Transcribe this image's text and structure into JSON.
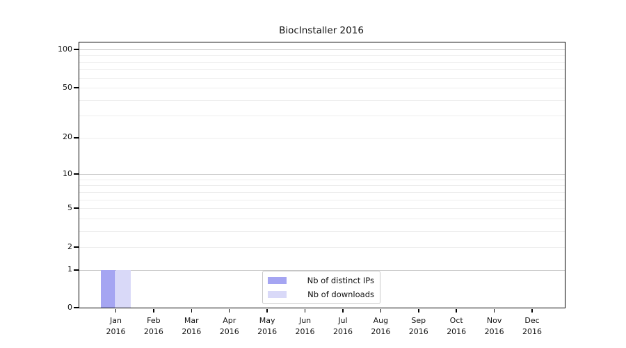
{
  "chart_data": {
    "type": "bar",
    "title": "BiocInstaller 2016",
    "categories": [
      "Jan",
      "Feb",
      "Mar",
      "Apr",
      "May",
      "Jun",
      "Jul",
      "Aug",
      "Sep",
      "Oct",
      "Nov",
      "Dec"
    ],
    "category_year": "2016",
    "series": [
      {
        "name": "Nb of distinct IPs",
        "color": "#a5a5f2",
        "values": [
          1,
          0,
          0,
          0,
          0,
          0,
          0,
          0,
          0,
          0,
          0,
          0
        ]
      },
      {
        "name": "Nb of downloads",
        "color": "#d9d9f8",
        "values": [
          1,
          0,
          0,
          0,
          0,
          0,
          0,
          0,
          0,
          0,
          0,
          0
        ]
      }
    ],
    "yscale": "log1p",
    "ylim": [
      0,
      100
    ],
    "yticks": [
      0,
      1,
      2,
      5,
      10,
      20,
      50,
      100
    ],
    "major_gridlines": [
      1,
      10,
      100
    ],
    "minor_gridlines": [
      2,
      3,
      4,
      5,
      6,
      7,
      8,
      9,
      20,
      30,
      40,
      50,
      60,
      70,
      80,
      90
    ],
    "grid": true,
    "legend_position": "bottom-center",
    "colors": {
      "major_grid": "#c6c6c6",
      "minor_grid": "#ededed",
      "axis": "#000000",
      "background": "#ffffff"
    }
  }
}
